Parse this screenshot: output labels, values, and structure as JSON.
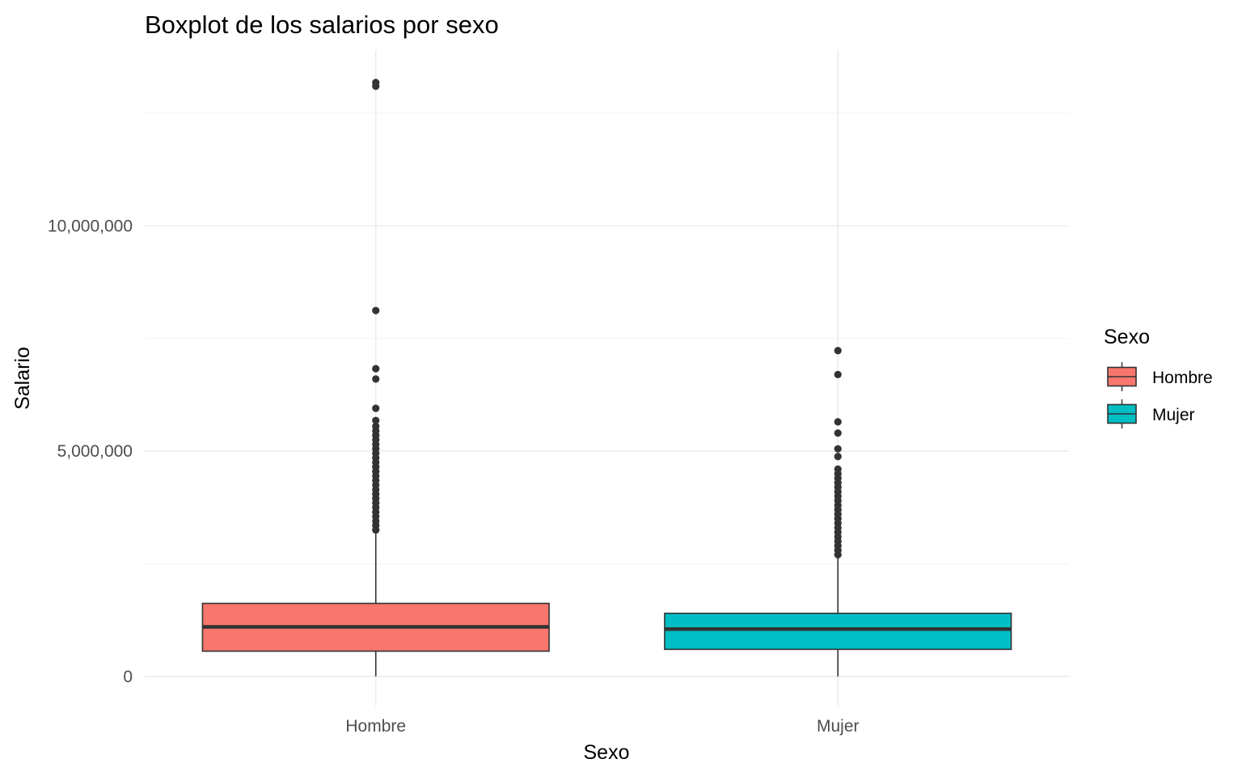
{
  "chart_data": {
    "type": "boxplot",
    "title": "Boxplot de los salarios por sexo",
    "xlabel": "Sexo",
    "ylabel": "Salario",
    "ylim": [
      -650000,
      13900000
    ],
    "y_ticks": [
      0,
      5000000,
      10000000
    ],
    "y_tick_labels": [
      "0",
      "5,000,000",
      "10,000,000"
    ],
    "grid": true,
    "legend": {
      "title": "Sexo",
      "position": "right"
    },
    "categories": [
      "Hombre",
      "Mujer"
    ],
    "series": [
      {
        "name": "Hombre",
        "color": "#F8766D",
        "min": 0,
        "q1": 560000,
        "median": 1100000,
        "q3": 1620000,
        "whisker_high": 3200000,
        "outliers": [
          3250000,
          3350000,
          3450000,
          3550000,
          3650000,
          3750000,
          3850000,
          3950000,
          4050000,
          4150000,
          4250000,
          4350000,
          4450000,
          4550000,
          4650000,
          4750000,
          4850000,
          4950000,
          5050000,
          5150000,
          5250000,
          5350000,
          5450000,
          5550000,
          5680000,
          5950000,
          6600000,
          6830000,
          8120000,
          13100000,
          13180000
        ]
      },
      {
        "name": "Mujer",
        "color": "#00BFC4",
        "min": 0,
        "q1": 600000,
        "median": 1050000,
        "q3": 1400000,
        "whisker_high": 2650000,
        "outliers": [
          2700000,
          2800000,
          2900000,
          3000000,
          3100000,
          3200000,
          3300000,
          3400000,
          3500000,
          3600000,
          3700000,
          3800000,
          3900000,
          4000000,
          4100000,
          4200000,
          4300000,
          4400000,
          4500000,
          4600000,
          4880000,
          5050000,
          5400000,
          5650000,
          6700000,
          7230000
        ]
      }
    ]
  }
}
